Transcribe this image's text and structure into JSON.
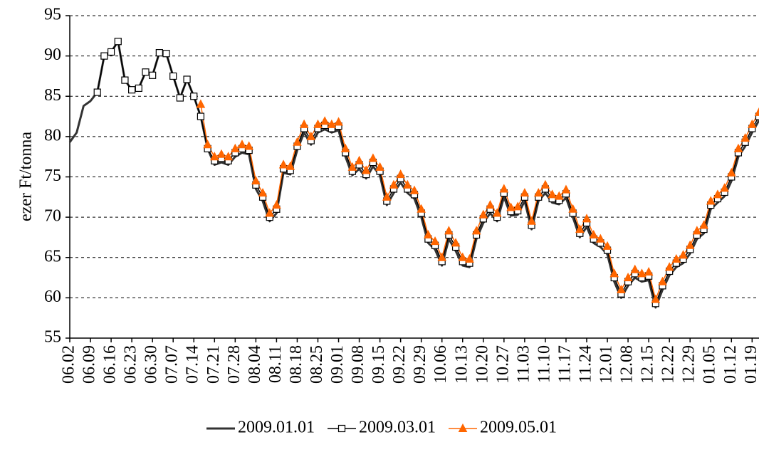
{
  "chart_data": {
    "type": "line",
    "y_label": "ezer Ft/tonna",
    "categories": [
      "06.02",
      null,
      null,
      "06.09",
      null,
      null,
      "06.16",
      null,
      null,
      "06.23",
      null,
      null,
      "06.30",
      null,
      null,
      "07.07",
      null,
      null,
      "07.14",
      null,
      null,
      "07.21",
      null,
      null,
      "07.28",
      null,
      null,
      "08.04",
      null,
      null,
      "08.11",
      null,
      null,
      "08.18",
      null,
      null,
      "08.25",
      null,
      null,
      "09.01",
      null,
      null,
      "09.08",
      null,
      null,
      "09.15",
      null,
      null,
      "09.22",
      null,
      null,
      "09.29",
      null,
      null,
      "10.06",
      null,
      null,
      "10.13",
      null,
      null,
      "10.20",
      null,
      null,
      "10.27",
      null,
      null,
      "11.03",
      null,
      null,
      "11.10",
      null,
      null,
      "11.17",
      null,
      null,
      "11.24",
      null,
      null,
      "12.01",
      null,
      null,
      "12.08",
      null,
      null,
      "12.15",
      null,
      null,
      "12.22",
      null,
      null,
      "12.29",
      null,
      null,
      "01.05",
      null,
      null,
      "01.12",
      null,
      null,
      "01.19",
      null
    ],
    "series": [
      {
        "name": "2009.01.01",
        "color": "#333333",
        "marker": "none",
        "values": [
          79.3,
          80.5,
          83.8,
          84.4,
          85.5,
          90.0,
          90.5,
          91.8,
          87.0,
          85.8,
          86.0,
          88.0,
          87.6,
          90.4,
          90.3,
          87.5,
          84.8,
          87.1,
          85.0,
          82.5,
          78.5,
          76.5,
          76.8,
          76.5,
          77.5,
          78.0,
          77.8,
          73.5,
          72.0,
          69.5,
          70.5,
          75.5,
          75.3,
          78.3,
          80.5,
          79.0,
          80.5,
          80.9,
          80.5,
          80.8,
          77.5,
          75.2,
          76.0,
          74.8,
          76.3,
          75.2,
          71.5,
          73.0,
          74.3,
          73.0,
          72.3,
          70.0,
          66.8,
          66.0,
          64.0,
          67.3,
          65.8,
          64.0,
          63.8,
          67.3,
          69.3,
          70.5,
          69.5,
          72.5,
          70.2,
          70.3,
          72.0,
          68.5,
          72.0,
          73.0,
          71.8,
          71.6,
          72.4,
          70.0,
          67.5,
          68.8,
          66.8,
          66.3,
          65.4,
          62.0,
          60.0,
          61.5,
          62.5,
          62.0,
          62.2,
          58.8,
          61.0,
          62.8,
          63.8,
          64.3,
          65.5,
          67.3,
          68.0,
          71.0,
          71.8,
          72.6,
          74.5,
          77.5,
          78.8,
          80.5,
          82.0
        ]
      },
      {
        "name": "2009.03.01",
        "color": "#000000",
        "marker": "square",
        "values": [
          null,
          null,
          null,
          null,
          85.5,
          90.0,
          90.5,
          91.8,
          87.0,
          85.8,
          86.0,
          88.0,
          87.6,
          90.4,
          90.3,
          87.5,
          84.8,
          87.1,
          85.0,
          82.5,
          78.5,
          77.0,
          77.3,
          77.0,
          78.0,
          78.5,
          78.3,
          74.0,
          72.5,
          70.0,
          71.0,
          76.0,
          75.8,
          78.8,
          81.0,
          79.5,
          81.0,
          81.4,
          81.0,
          81.3,
          78.0,
          75.7,
          76.5,
          75.3,
          76.8,
          75.7,
          72.0,
          73.5,
          74.8,
          73.5,
          72.8,
          70.5,
          67.3,
          66.5,
          64.5,
          67.8,
          66.3,
          64.5,
          64.3,
          67.8,
          69.8,
          71.0,
          70.0,
          73.0,
          70.7,
          70.8,
          72.5,
          69.0,
          72.5,
          73.5,
          72.3,
          72.1,
          72.9,
          70.5,
          68.0,
          69.3,
          67.3,
          66.8,
          65.9,
          62.5,
          60.5,
          62.0,
          63.0,
          62.5,
          62.7,
          59.3,
          61.5,
          63.3,
          64.3,
          64.8,
          66.0,
          67.8,
          68.5,
          71.5,
          72.3,
          73.1,
          75.0,
          78.0,
          79.3,
          81.0,
          82.5
        ]
      },
      {
        "name": "2009.05.01",
        "color": "#ff6600",
        "marker": "triangle",
        "values": [
          null,
          null,
          null,
          null,
          null,
          null,
          null,
          null,
          null,
          null,
          null,
          null,
          null,
          null,
          null,
          null,
          null,
          null,
          null,
          84.0,
          79.0,
          77.5,
          77.8,
          77.5,
          78.5,
          79.0,
          78.8,
          74.5,
          73.0,
          70.5,
          71.5,
          76.5,
          76.3,
          79.3,
          81.5,
          80.0,
          81.5,
          81.9,
          81.5,
          81.8,
          78.5,
          76.2,
          77.0,
          75.8,
          77.3,
          76.2,
          72.5,
          74.0,
          75.3,
          74.0,
          73.3,
          71.0,
          67.8,
          67.0,
          65.0,
          68.3,
          66.8,
          65.0,
          64.8,
          68.3,
          70.3,
          71.5,
          70.5,
          73.5,
          71.2,
          71.3,
          73.0,
          69.5,
          73.0,
          74.0,
          72.8,
          72.6,
          73.4,
          71.0,
          68.5,
          69.8,
          67.8,
          67.3,
          66.4,
          63.0,
          61.0,
          62.5,
          63.5,
          63.0,
          63.2,
          59.8,
          62.0,
          63.8,
          64.8,
          65.3,
          66.5,
          68.3,
          69.0,
          72.0,
          72.8,
          73.6,
          75.5,
          78.5,
          79.8,
          81.5,
          83.0
        ]
      }
    ],
    "ylim": [
      55,
      95
    ],
    "yticks": [
      55,
      60,
      65,
      70,
      75,
      80,
      85,
      90,
      95
    ],
    "grid": true,
    "legend": "bottom"
  }
}
